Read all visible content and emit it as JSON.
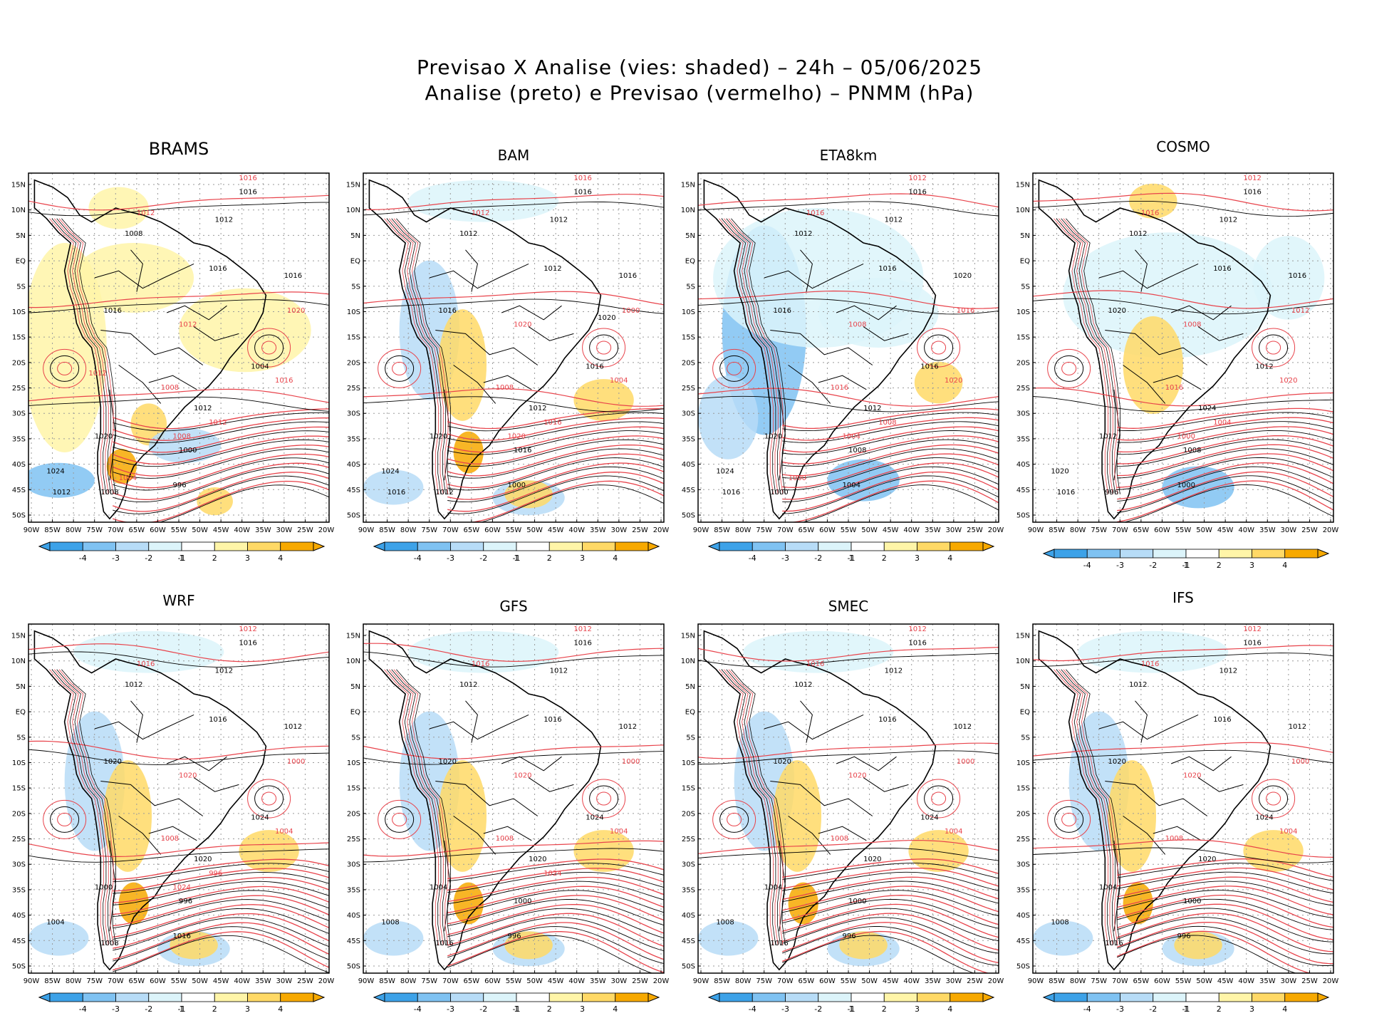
{
  "title": {
    "line1": "Previsao X Analise (vies: shaded) – 24h – 05/06/2025",
    "line2": "Analise (preto) e Previsao (vermelho) – PNMM (hPa)"
  },
  "axes": {
    "lat_labels": [
      "15N",
      "10N",
      "5N",
      "EQ",
      "5S",
      "10S",
      "15S",
      "20S",
      "25S",
      "30S",
      "35S",
      "40S",
      "45S",
      "50S"
    ],
    "lon_labels": [
      "90W",
      "85W",
      "80W",
      "75W",
      "70W",
      "65W",
      "60W",
      "55W",
      "50W",
      "45W",
      "40W",
      "35W",
      "30W",
      "25W",
      "20W"
    ]
  },
  "colorbar": {
    "labels": [
      "-4",
      "-3",
      "-2",
      "-1",
      "1",
      "2",
      "3",
      "4"
    ],
    "colors": [
      "#3da2e8",
      "#7fc2f2",
      "#b7dcf7",
      "#dcf4fa",
      "#ffffff",
      "#fff5a8",
      "#ffd966",
      "#f7a900"
    ],
    "neg_color": "#3da2e8",
    "pos_color": "#f7a900"
  },
  "colors": {
    "analysis_contour": "#000000",
    "forecast_contour": "#e8434b",
    "coast": "#000000"
  },
  "panels": [
    {
      "name": "BRAMS",
      "contour_labels_black": [
        "1016",
        "1012",
        "1008",
        "1016",
        "1016",
        "1016",
        "1004",
        "1012",
        "1024",
        "1020",
        "1000",
        "996",
        "1008",
        "1012"
      ],
      "contour_labels_red": [
        "1012",
        "1016",
        "1012",
        "1008",
        "1016",
        "1020",
        "1012",
        "1008",
        "1004",
        "1012"
      ],
      "bias": "mixed-positive"
    },
    {
      "name": "BAM",
      "contour_labels_black": [
        "1016",
        "1012",
        "1012",
        "1012",
        "1016",
        "1016",
        "1016",
        "1012",
        "1024",
        "1020",
        "1016",
        "1000",
        "1012",
        "1016",
        "1020"
      ],
      "contour_labels_red": [
        "1012",
        "1016",
        "1020",
        "1008",
        "1004",
        "1000",
        "1016",
        "1020"
      ],
      "bias": "mixed"
    },
    {
      "name": "ETA8km",
      "contour_labels_black": [
        "1016",
        "1012",
        "1012",
        "1016",
        "1016",
        "1020",
        "1016",
        "1012",
        "1024",
        "1020",
        "1008",
        "1004",
        "1000",
        "1016"
      ],
      "contour_labels_red": [
        "1016",
        "1012",
        "1008",
        "1016",
        "1020",
        "1016",
        "1008",
        "1004",
        "1000"
      ],
      "bias": "negative"
    },
    {
      "name": "COSMO",
      "contour_labels_black": [
        "1016",
        "1012",
        "1012",
        "1016",
        "1020",
        "1016",
        "1012",
        "1024",
        "1020",
        "1012",
        "1008",
        "1000",
        "996",
        "1016"
      ],
      "contour_labels_red": [
        "1016",
        "1012",
        "1008",
        "1016",
        "1020",
        "1012",
        "1004",
        "1000"
      ],
      "bias": "mixed-negative"
    },
    {
      "name": "WRF",
      "contour_labels_black": [
        "1016",
        "1012",
        "1012",
        "1016",
        "1020",
        "1012",
        "1024",
        "1020",
        "1004",
        "1000",
        "996",
        "1016",
        "1008"
      ],
      "contour_labels_red": [
        "1016",
        "1012",
        "1020",
        "1008",
        "1004",
        "1000",
        "996",
        "1024"
      ],
      "bias": "mixed"
    },
    {
      "name": "GFS",
      "contour_labels_black": [
        "1016",
        "1012",
        "1012",
        "1016",
        "1020",
        "1012",
        "1024",
        "1020",
        "1008",
        "1004",
        "1000",
        "996",
        "1016"
      ],
      "contour_labels_red": [
        "1016",
        "1012",
        "1020",
        "1008",
        "1004",
        "1000",
        "1024"
      ],
      "bias": "mixed"
    },
    {
      "name": "SMEC",
      "contour_labels_black": [
        "1016",
        "1012",
        "1012",
        "1016",
        "1020",
        "1012",
        "1024",
        "1020",
        "1008",
        "1004",
        "1000",
        "996",
        "1016"
      ],
      "contour_labels_red": [
        "1016",
        "1012",
        "1020",
        "1008",
        "1004",
        "1000"
      ],
      "bias": "mixed"
    },
    {
      "name": "IFS",
      "contour_labels_black": [
        "1016",
        "1012",
        "1012",
        "1016",
        "1020",
        "1012",
        "1024",
        "1020",
        "1008",
        "1004",
        "1000",
        "996",
        "1016"
      ],
      "contour_labels_red": [
        "1016",
        "1012",
        "1020",
        "1008",
        "1004",
        "1000"
      ],
      "bias": "mixed"
    }
  ]
}
